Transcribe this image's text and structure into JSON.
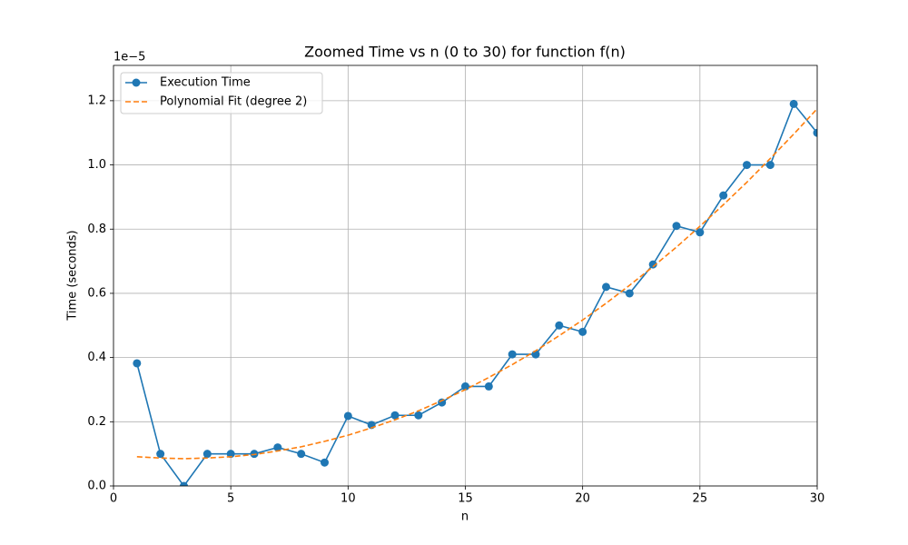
{
  "chart_data": {
    "type": "line",
    "title": "Zoomed Time vs n (0 to 30) for function f(n)",
    "x_label": "n",
    "y_label": "Time (seconds)",
    "y_offset_label": "1e−5",
    "x": [
      1,
      2,
      3,
      4,
      5,
      6,
      7,
      8,
      9,
      10,
      11,
      12,
      13,
      14,
      15,
      16,
      17,
      18,
      19,
      20,
      21,
      22,
      23,
      24,
      25,
      26,
      27,
      28,
      29,
      30
    ],
    "series": [
      {
        "name": "Execution Time",
        "color": "#1f77b4",
        "marker": true,
        "dashed": false,
        "values": [
          0.382,
          0.1,
          0,
          0.1,
          0.1,
          0.1,
          0.12,
          0.1,
          0.073,
          0.218,
          0.19,
          0.22,
          0.22,
          0.26,
          0.31,
          0.31,
          0.41,
          0.41,
          0.5,
          0.48,
          0.62,
          0.6,
          0.69,
          0.81,
          0.79,
          0.905,
          1.0,
          1.0,
          1.19,
          1.1
        ]
      },
      {
        "name": "Polynomial Fit (degree 2)",
        "color": "#ff7f0e",
        "marker": false,
        "dashed": true,
        "values": [
          0.091,
          0.087,
          0.085,
          0.087,
          0.091,
          0.098,
          0.109,
          0.122,
          0.139,
          0.158,
          0.181,
          0.206,
          0.234,
          0.266,
          0.3,
          0.338,
          0.378,
          0.421,
          0.468,
          0.517,
          0.569,
          0.625,
          0.683,
          0.744,
          0.809,
          0.876,
          0.946,
          1.02,
          1.096,
          1.175
        ]
      }
    ],
    "xlim": [
      0,
      30
    ],
    "ylim": [
      0,
      1.31
    ],
    "xticks": [
      0,
      5,
      10,
      15,
      20,
      25,
      30
    ],
    "yticks": [
      {
        "value": 0,
        "label": "0.0"
      },
      0.2,
      0.4,
      0.6,
      0.8,
      {
        "value": 1,
        "label": "1.0"
      },
      1.2
    ],
    "grid": true,
    "legend": "upper-left"
  }
}
